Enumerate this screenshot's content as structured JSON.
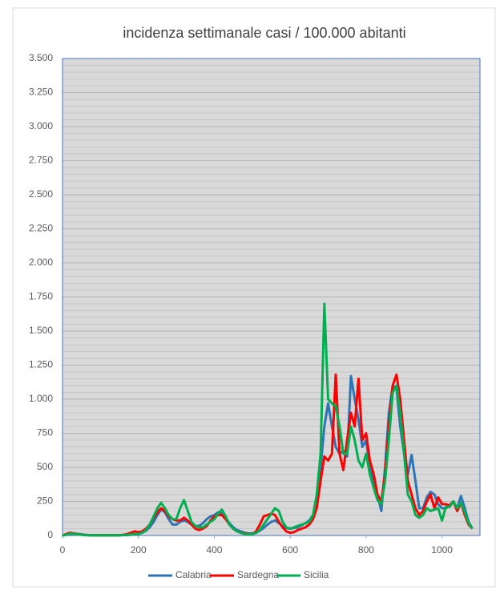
{
  "chart_data": {
    "type": "line",
    "title": "incidenza settimanale casi / 100.000 abitanti",
    "x": [
      0,
      10,
      20,
      30,
      40,
      50,
      60,
      70,
      80,
      90,
      100,
      110,
      120,
      130,
      140,
      150,
      160,
      170,
      180,
      190,
      200,
      210,
      220,
      230,
      240,
      250,
      260,
      270,
      280,
      290,
      300,
      310,
      320,
      330,
      340,
      350,
      360,
      370,
      380,
      390,
      400,
      410,
      420,
      430,
      440,
      450,
      460,
      470,
      480,
      490,
      500,
      510,
      520,
      530,
      540,
      550,
      560,
      570,
      580,
      590,
      600,
      610,
      620,
      630,
      640,
      650,
      660,
      670,
      680,
      690,
      700,
      710,
      720,
      730,
      740,
      750,
      760,
      770,
      780,
      790,
      800,
      810,
      820,
      830,
      840,
      850,
      860,
      870,
      880,
      890,
      900,
      910,
      920,
      930,
      940,
      950,
      960,
      970,
      980,
      990,
      1000,
      1010,
      1020,
      1030,
      1040,
      1050,
      1060,
      1070,
      1080
    ],
    "series": [
      {
        "name": "Calabria",
        "color": "#2e75b6",
        "values": [
          0,
          5,
          10,
          15,
          12,
          8,
          5,
          3,
          2,
          2,
          2,
          2,
          2,
          2,
          2,
          2,
          3,
          3,
          5,
          8,
          12,
          20,
          35,
          60,
          100,
          150,
          190,
          170,
          120,
          80,
          80,
          100,
          110,
          100,
          80,
          70,
          70,
          90,
          120,
          140,
          150,
          170,
          160,
          130,
          90,
          60,
          40,
          30,
          20,
          15,
          15,
          20,
          35,
          55,
          80,
          100,
          110,
          90,
          70,
          55,
          50,
          55,
          60,
          75,
          90,
          110,
          150,
          250,
          500,
          800,
          970,
          800,
          650,
          600,
          620,
          580,
          1170,
          1000,
          850,
          650,
          700,
          500,
          400,
          300,
          180,
          500,
          900,
          1100,
          1080,
          800,
          600,
          450,
          590,
          400,
          200,
          200,
          280,
          320,
          300,
          230,
          200,
          200,
          220,
          250,
          200,
          290,
          200,
          100,
          50
        ]
      },
      {
        "name": "Sardegna",
        "color": "#ff0000",
        "values": [
          0,
          10,
          20,
          15,
          10,
          5,
          3,
          2,
          2,
          2,
          2,
          2,
          2,
          2,
          2,
          2,
          5,
          10,
          20,
          30,
          25,
          30,
          50,
          80,
          130,
          170,
          200,
          180,
          140,
          120,
          110,
          110,
          130,
          110,
          80,
          50,
          40,
          50,
          70,
          110,
          140,
          150,
          150,
          120,
          80,
          50,
          30,
          20,
          15,
          10,
          10,
          30,
          80,
          140,
          150,
          160,
          150,
          100,
          60,
          30,
          20,
          25,
          40,
          50,
          60,
          80,
          120,
          200,
          400,
          580,
          550,
          600,
          1180,
          600,
          480,
          700,
          900,
          800,
          1150,
          700,
          750,
          550,
          450,
          300,
          250,
          450,
          800,
          1100,
          1180,
          1000,
          700,
          400,
          300,
          200,
          150,
          180,
          250,
          300,
          200,
          280,
          230,
          230,
          220,
          250,
          180,
          240,
          150,
          80,
          50
        ]
      },
      {
        "name": "Sicilia",
        "color": "#00b050",
        "values": [
          0,
          5,
          15,
          12,
          8,
          5,
          3,
          2,
          2,
          2,
          2,
          2,
          2,
          2,
          2,
          2,
          3,
          5,
          8,
          10,
          12,
          20,
          40,
          80,
          140,
          200,
          240,
          200,
          150,
          120,
          120,
          200,
          260,
          180,
          100,
          70,
          60,
          60,
          80,
          100,
          120,
          160,
          190,
          140,
          80,
          50,
          30,
          20,
          10,
          8,
          10,
          20,
          40,
          80,
          120,
          160,
          200,
          180,
          100,
          60,
          50,
          60,
          70,
          80,
          90,
          100,
          150,
          300,
          600,
          1700,
          1000,
          970,
          950,
          800,
          600,
          600,
          800,
          700,
          550,
          500,
          600,
          450,
          350,
          260,
          230,
          400,
          700,
          1050,
          1100,
          900,
          600,
          300,
          250,
          150,
          130,
          150,
          200,
          180,
          190,
          200,
          110,
          210,
          210,
          250,
          200,
          240,
          170,
          90,
          50
        ]
      }
    ],
    "xlim": [
      0,
      1100
    ],
    "xticks": [
      0,
      200,
      400,
      600,
      800,
      1000
    ],
    "ylim": [
      0,
      3500
    ],
    "yticks": [
      0,
      250,
      500,
      750,
      {
        "value": 1000,
        "label": "1.000"
      },
      {
        "value": 1250,
        "label": "1.250"
      },
      {
        "value": 1500,
        "label": "1.500"
      },
      {
        "value": 1750,
        "label": "1.750"
      },
      {
        "value": 2000,
        "label": "2.000"
      },
      {
        "value": 2250,
        "label": "2.250"
      },
      {
        "value": 2500,
        "label": "2.500"
      },
      {
        "value": 2750,
        "label": "2.750"
      },
      {
        "value": 3000,
        "label": "3.000"
      },
      {
        "value": 3250,
        "label": "3.250"
      },
      {
        "value": 3500,
        "label": "3.500"
      }
    ],
    "grid": true,
    "legend": "bottom"
  }
}
